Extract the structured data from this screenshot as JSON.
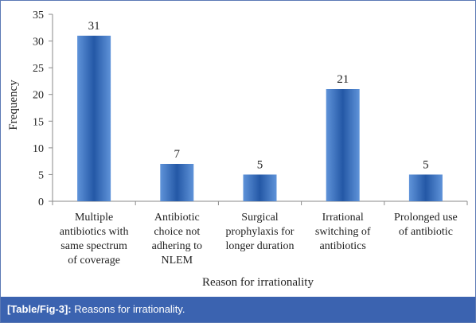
{
  "chart_data": {
    "type": "bar",
    "categories": [
      [
        "Multiple",
        "antibiotics with",
        "same spectrum",
        "of coverage"
      ],
      [
        "Antibiotic",
        "choice not",
        "adhering to",
        "NLEM"
      ],
      [
        "Surgical",
        "prophylaxis for",
        "longer duration"
      ],
      [
        "Irrational",
        "switching of",
        "antibiotics"
      ],
      [
        "Prolonged use",
        "of antibiotic"
      ]
    ],
    "values": [
      31,
      7,
      5,
      21,
      5
    ],
    "data_labels": [
      "31",
      "7",
      "5",
      "21",
      "5"
    ],
    "yticks": [
      "0",
      "5",
      "10",
      "15",
      "20",
      "25",
      "30",
      "35"
    ],
    "ylim": [
      0,
      35
    ],
    "xlabel": "Reason for irrationality",
    "ylabel": "Frequency",
    "grid": false,
    "bar_colors": {
      "light": "#5f93d9",
      "dark": "#2458a6"
    }
  },
  "caption": {
    "ref": "[Table/Fig-3]:",
    "text": " Reasons for irrationality."
  }
}
